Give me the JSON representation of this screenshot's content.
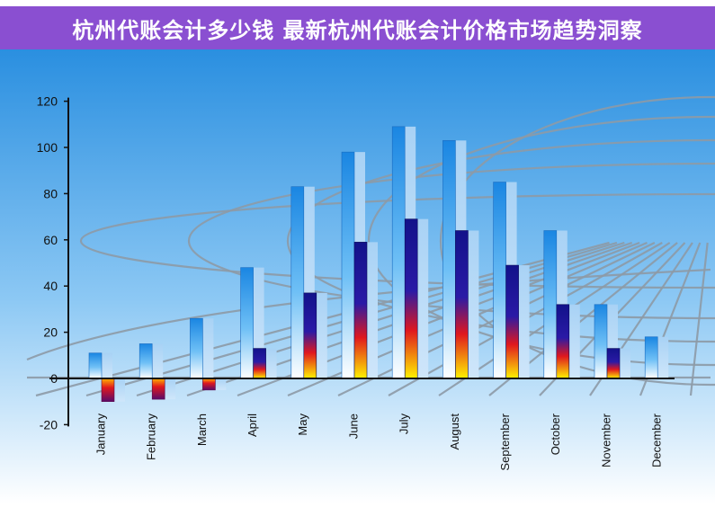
{
  "header": {
    "title": "杭州代账会计多少钱 最新杭州代账会计价格市场趋势洞察"
  },
  "chart_data": {
    "type": "bar",
    "categories": [
      "January",
      "February",
      "March",
      "April",
      "May",
      "June",
      "July",
      "August",
      "September",
      "October",
      "November",
      "December"
    ],
    "series": [
      {
        "values": [
          11,
          15,
          26,
          48,
          83,
          98,
          109,
          103,
          85,
          64,
          32,
          18
        ]
      },
      {
        "values": [
          -10,
          -9,
          -5,
          13,
          37,
          59,
          69,
          64,
          49,
          32,
          13,
          null
        ]
      }
    ],
    "ylim": [
      -20,
      120
    ],
    "yticks": [
      -20,
      0,
      20,
      40,
      60,
      80,
      100,
      120
    ],
    "colors": {
      "banner": "#8a4fd1",
      "sky_top": "#2a8fe0",
      "sky_bottom": "#ffffff",
      "bar_blue": "#1f8ee6",
      "bar_navy": "#1a1a8c",
      "bar_yellow": "#ffee00",
      "bar_red": "#e01818"
    }
  }
}
